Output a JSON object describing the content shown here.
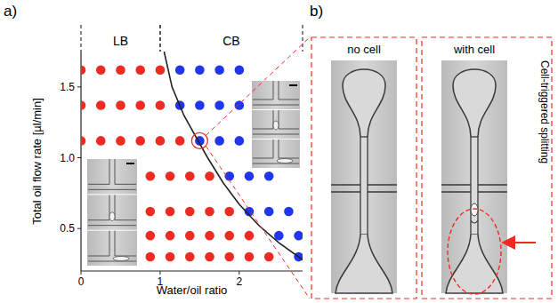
{
  "chart_data": {
    "type": "scatter",
    "panel_label": "a)",
    "x_label": "Water/oil ratio",
    "y_label": "Total oil flow rate  [µl/min]",
    "xlim": [
      0,
      2.8
    ],
    "ylim": [
      0.2,
      1.75
    ],
    "xticks": [
      0,
      1,
      2
    ],
    "yticks": [
      {
        "value": 0.5,
        "label": "0.5"
      },
      {
        "value": 1,
        "label": "1.0"
      },
      {
        "value": 1.5,
        "label": "1.5"
      }
    ],
    "regions": [
      {
        "label": "LB",
        "x": [
          0,
          1
        ]
      },
      {
        "label": "CB",
        "x": [
          1,
          2.8
        ]
      }
    ],
    "series": [
      {
        "color": "#ee2b22",
        "marker": "circle",
        "x": [
          0,
          0.25,
          0.5,
          0.75,
          1.0,
          0,
          0.25,
          0.5,
          0.75,
          1.0,
          0,
          0.25,
          0.5,
          0.75,
          1.0,
          1.25,
          0.875,
          1.125,
          1.375,
          1.625,
          0.875,
          1.125,
          1.375,
          1.625,
          1.875,
          0.875,
          1.125,
          1.375,
          1.625,
          1.875,
          2.125,
          0.875,
          1.125,
          1.375,
          1.625,
          1.875,
          2.125,
          2.375
        ],
        "values": [
          1.62,
          1.62,
          1.62,
          1.62,
          1.62,
          1.37,
          1.37,
          1.37,
          1.37,
          1.37,
          1.12,
          1.12,
          1.12,
          1.12,
          1.12,
          1.12,
          0.87,
          0.87,
          0.87,
          0.87,
          0.62,
          0.62,
          0.62,
          0.62,
          0.62,
          0.45,
          0.45,
          0.45,
          0.45,
          0.45,
          0.45,
          0.3,
          0.3,
          0.3,
          0.3,
          0.3,
          0.3,
          0.3
        ]
      },
      {
        "color": "#2135ee",
        "marker": "circle",
        "x": [
          1.25,
          1.5,
          1.75,
          2.0,
          1.25,
          1.5,
          1.75,
          2.0,
          1.5,
          1.75,
          2.0,
          1.875,
          2.125,
          2.375,
          2.125,
          2.375,
          2.625,
          2.5,
          2.75,
          2.75
        ],
        "values": [
          1.62,
          1.62,
          1.62,
          1.62,
          1.37,
          1.37,
          1.37,
          1.37,
          1.12,
          1.12,
          1.12,
          0.87,
          0.87,
          0.87,
          0.62,
          0.62,
          0.62,
          0.45,
          0.45,
          0.3
        ]
      },
      {
        "type": "line",
        "color": "#222222",
        "line_style": "solid",
        "x": [
          1.05,
          1.15,
          1.3,
          1.45,
          1.6,
          1.8,
          2.0,
          2.25,
          2.5,
          2.8
        ],
        "values": [
          1.75,
          1.5,
          1.3,
          1.15,
          1.0,
          0.82,
          0.67,
          0.52,
          0.4,
          0.28
        ]
      }
    ],
    "circled": {
      "x": 1.5,
      "value": 1.12,
      "color": "#ee2b22"
    }
  },
  "panel_b": {
    "label": "b)",
    "images": [
      {
        "title": "no cell",
        "cell": false
      },
      {
        "title": "with cell",
        "cell": true,
        "annotation": "Cell-triggered splitting"
      }
    ]
  }
}
